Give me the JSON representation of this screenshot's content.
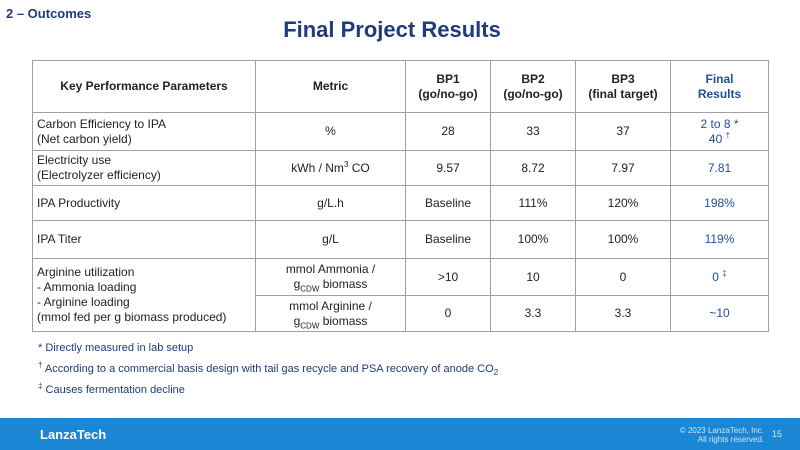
{
  "header": {
    "section": "2 – Outcomes",
    "title": "Final Project Results"
  },
  "table": {
    "columns": [
      "Key Performance Parameters",
      "Metric",
      "BP1\n(go/no-go)",
      "BP2\n(go/no-go)",
      "BP3\n(final target)",
      "Final\nResults"
    ],
    "rows": [
      {
        "parameter": "Carbon Efficiency to IPA\n (Net carbon yield)",
        "lines": [
          [
            "%",
            28,
            33,
            37,
            [
              {
                "text": "2 to 8 *\n40 "
              },
              {
                "sup": "†"
              }
            ]
          ]
        ]
      },
      {
        "parameter": "Electricity use\n(Electrolyzer efficiency)",
        "lines": [
          [
            [
              {
                "text": "kWh / Nm"
              },
              {
                "sup": "3"
              },
              {
                "text": " CO"
              }
            ],
            9.57,
            8.72,
            7.97,
            7.81
          ]
        ]
      },
      {
        "parameter": "IPA Productivity",
        "lines": [
          [
            "g/L.h",
            "Baseline",
            "111%",
            "120%",
            "198%"
          ]
        ]
      },
      {
        "parameter": "IPA Titer",
        "lines": [
          [
            "g/L",
            "Baseline",
            "100%",
            "100%",
            "119%"
          ]
        ]
      },
      {
        "parameter": "Arginine utilization\n- Ammonia loading\n- Arginine loading\n (mmol fed per g biomass produced)",
        "lines": [
          [
            [
              {
                "text": "mmol Ammonia /\ng"
              },
              {
                "sub": "CDW"
              },
              {
                "text": " biomass"
              }
            ],
            ">10",
            10,
            0,
            [
              {
                "text": "0 "
              },
              {
                "sup": "‡"
              }
            ]
          ],
          [
            [
              {
                "text": "mmol Arginine /\ng"
              },
              {
                "sub": "CDW"
              },
              {
                "text": " biomass"
              }
            ],
            0,
            3.3,
            3.3,
            "~10"
          ]
        ]
      }
    ]
  },
  "footnotes": [
    "* Directly measured in lab setup",
    [
      {
        "sup": "†"
      },
      {
        "text": " According to a commercial basis design with tail gas recycle and PSA recovery of anode CO"
      },
      {
        "sub": "2"
      }
    ],
    [
      {
        "sup": "‡"
      },
      {
        "text": " Causes fermentation decline"
      }
    ]
  ],
  "footer": {
    "brand": "LanzaTech",
    "copyright": "© 2023 LanzaTech, Inc.\nAll rights reserved.",
    "page": 15
  }
}
